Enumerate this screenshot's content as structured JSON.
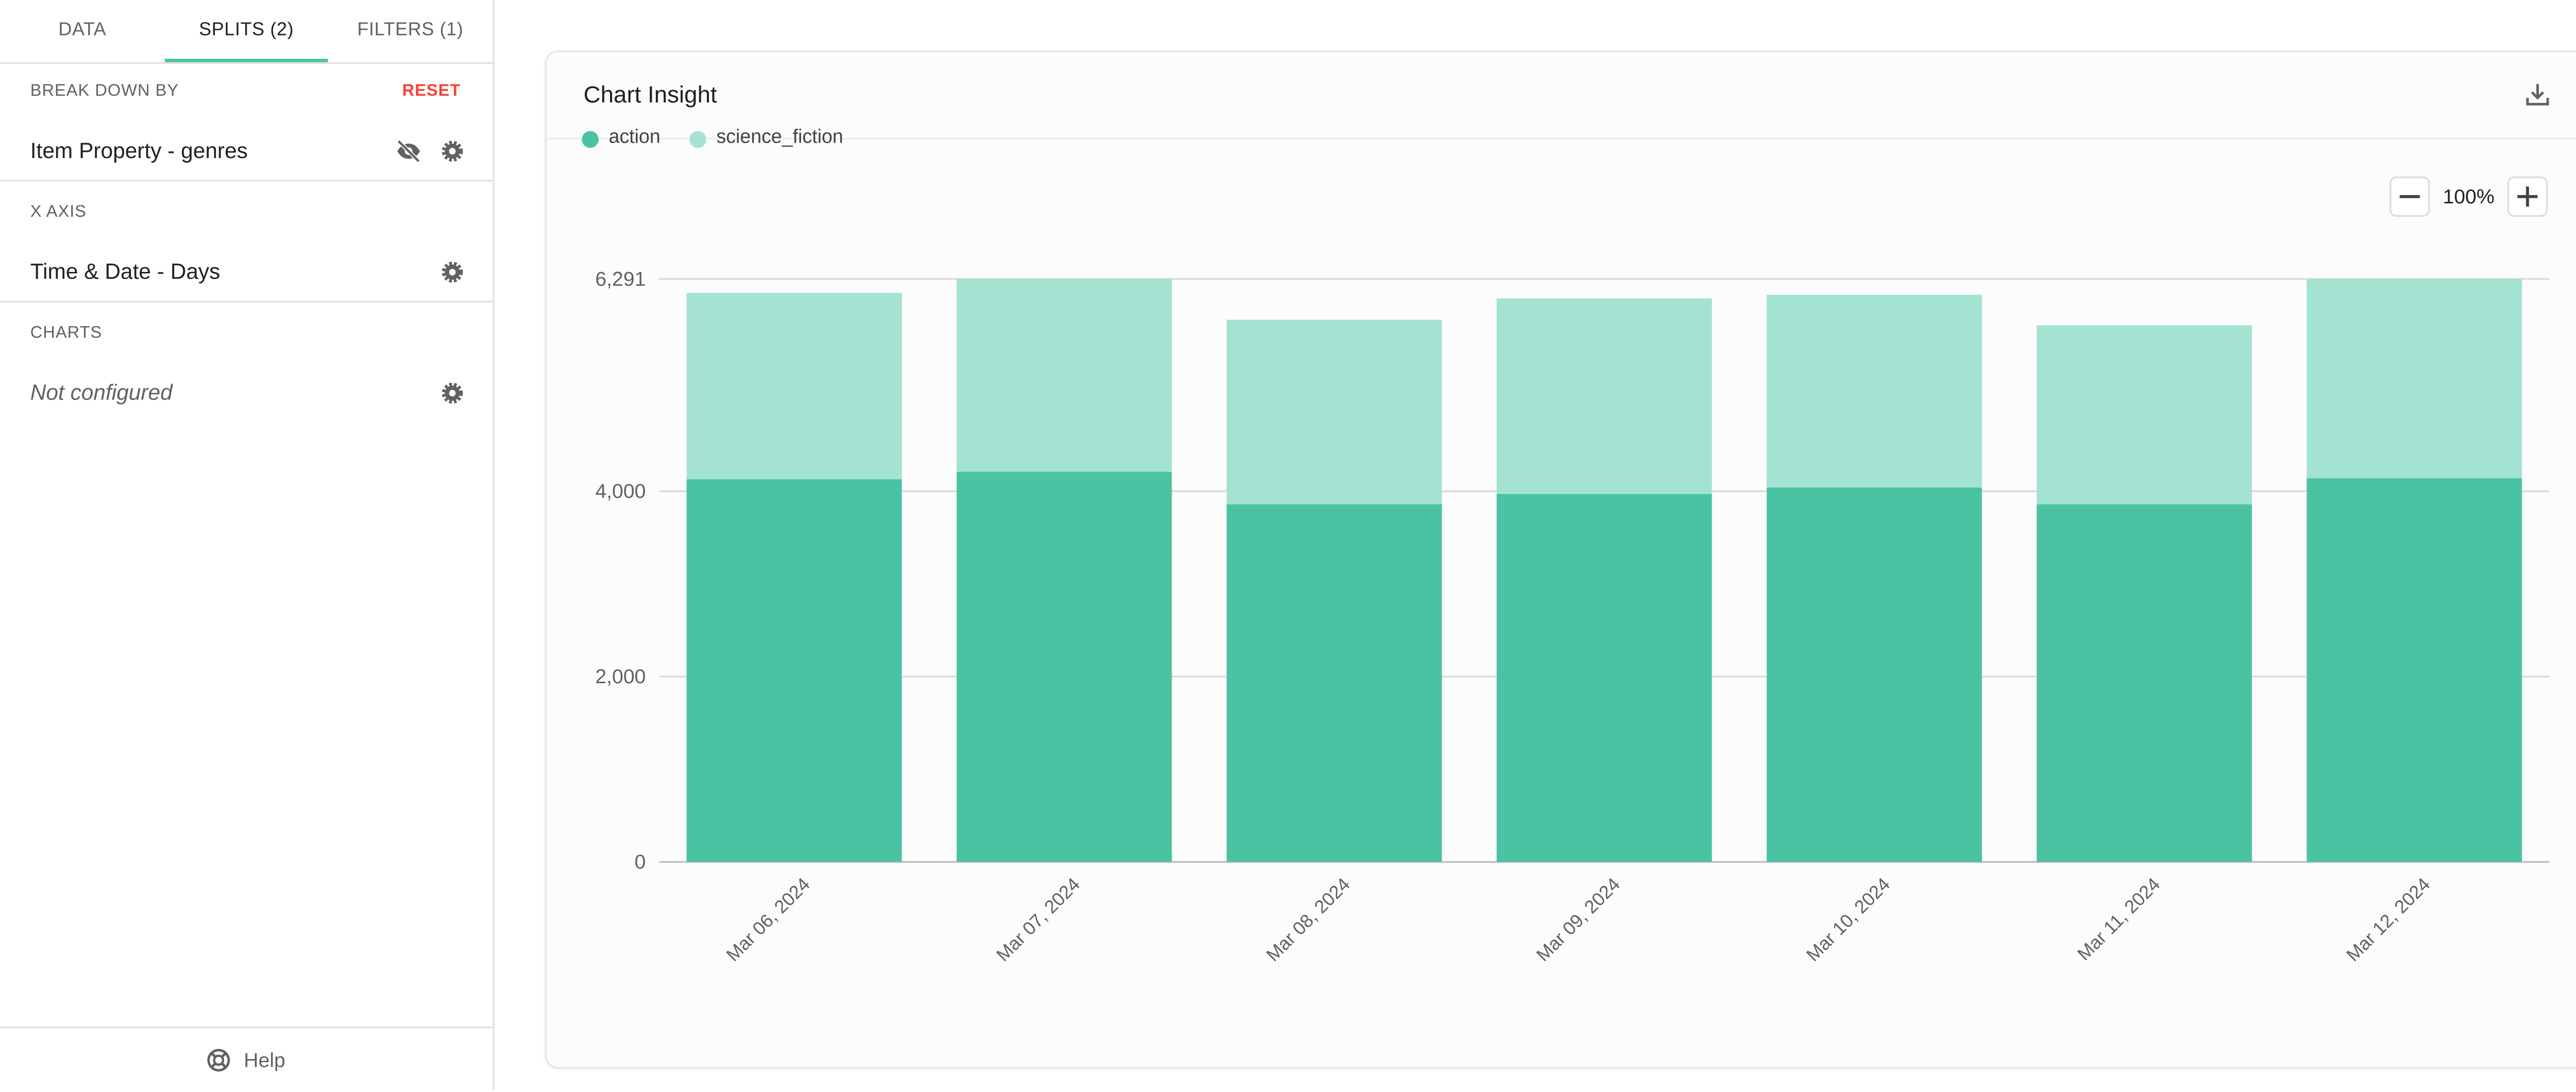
{
  "sidebar": {
    "tabs": [
      {
        "label": "DATA",
        "active": false
      },
      {
        "label": "SPLITS (2)",
        "active": true
      },
      {
        "label": "FILTERS (1)",
        "active": false
      }
    ],
    "breakdown": {
      "section_label": "BREAK DOWN BY",
      "reset_label": "RESET",
      "value": "Item Property - genres"
    },
    "x_axis": {
      "section_label": "X AXIS",
      "value": "Time & Date - Days"
    },
    "charts": {
      "section_label": "CHARTS",
      "value": "Not configured"
    },
    "help_label": "Help",
    "icons": {
      "visibility_off": "eye-slash-icon",
      "settings": "gear-icon",
      "help": "lifebuoy-icon"
    }
  },
  "card": {
    "title": "Chart Insight",
    "download_icon": "download-icon",
    "zoom": {
      "value": "100%",
      "decrease_icon": "minus-icon",
      "increase_icon": "plus-icon"
    }
  },
  "colors": {
    "accent": "#4bc3a3",
    "reset": "#f44336",
    "action": "#4bc3a3",
    "science_fiction": "#a4e2d2"
  },
  "chart_data": {
    "type": "bar",
    "stacked": true,
    "categories": [
      "Mar 06, 2024",
      "Mar 07, 2024",
      "Mar 08, 2024",
      "Mar 09, 2024",
      "Mar 10, 2024",
      "Mar 11, 2024",
      "Mar 12, 2024"
    ],
    "series": [
      {
        "name": "action",
        "color": "#4bc3a3",
        "values": [
          4130,
          4210,
          3860,
          3970,
          4040,
          3860,
          4140
        ]
      },
      {
        "name": "science_fiction",
        "color": "#a4e2d2",
        "values": [
          2010,
          2080,
          1990,
          2110,
          2080,
          1930,
          2151
        ]
      }
    ],
    "yticks": [
      0,
      2000,
      4000,
      6291
    ],
    "ytick_labels": [
      "0",
      "2,000",
      "4,000",
      "6,291"
    ],
    "ylim": [
      0,
      6291
    ],
    "grid": true,
    "legend_position": "top-left",
    "title": "",
    "xlabel": "",
    "ylabel": ""
  }
}
